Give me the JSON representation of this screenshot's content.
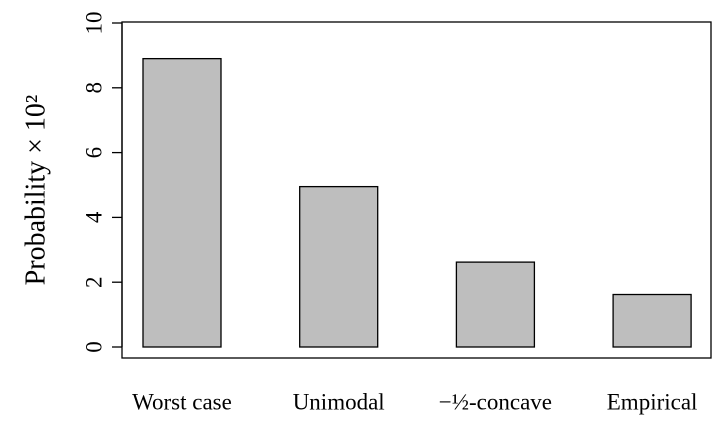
{
  "chart_data": {
    "type": "bar",
    "y_label": "Probability × 10²",
    "categories": [
      "Worst case",
      "Unimodal",
      "−½-concave",
      "Empirical"
    ],
    "values": [
      8.9,
      4.95,
      2.62,
      1.62
    ],
    "color": "#bebebe",
    "ylim": [
      0,
      10
    ],
    "yticks": [
      0,
      2,
      4,
      6,
      8,
      10
    ],
    "grid": false
  }
}
